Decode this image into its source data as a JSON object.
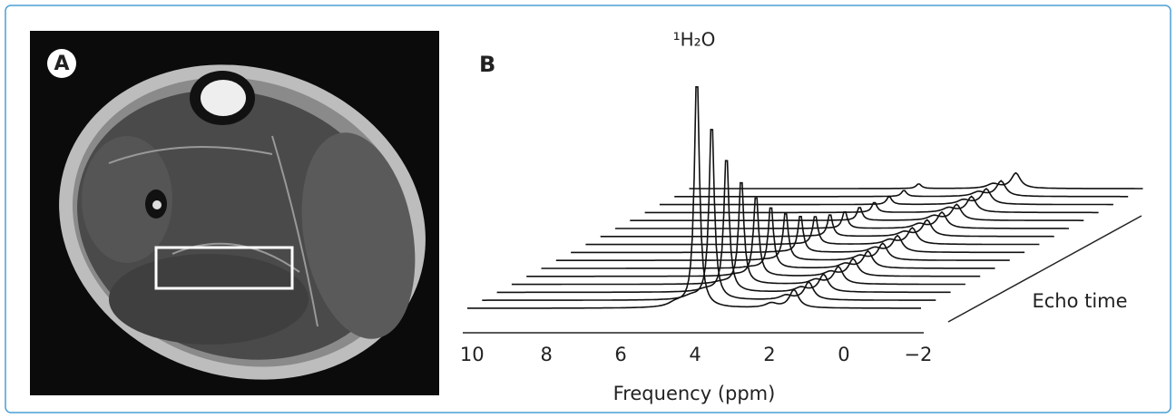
{
  "figure": {
    "panel_a": {
      "label": "A"
    },
    "panel_b": {
      "label": "B",
      "peak_label": "¹H₂O",
      "x_axis": {
        "title": "Frequency (ppm)",
        "xlim": [
          10.25,
          -2.15
        ],
        "xticks": [
          10,
          8,
          6,
          4,
          2,
          0,
          {
            "value": -2,
            "label": "−2"
          }
        ]
      },
      "depth_axis": {
        "title": "Echo time"
      }
    }
  }
}
